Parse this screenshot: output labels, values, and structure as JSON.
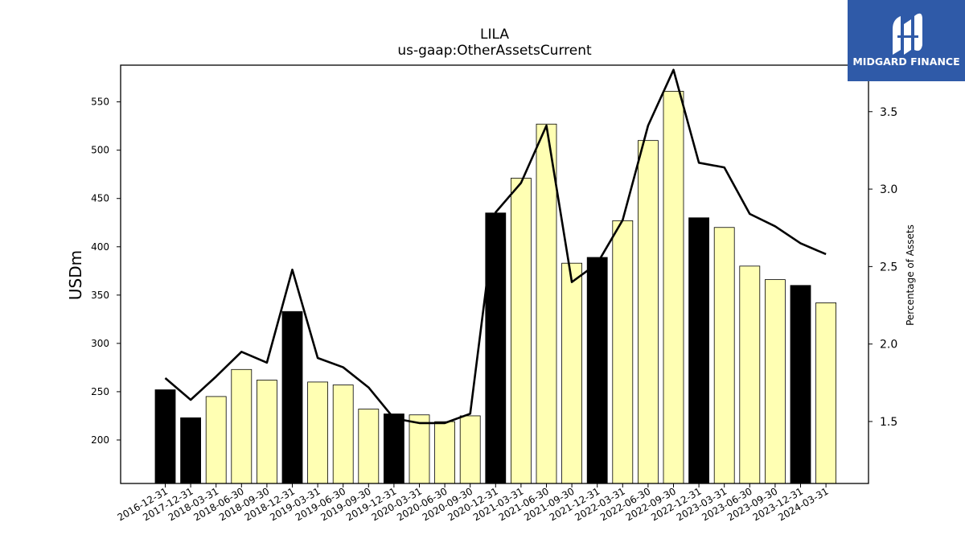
{
  "chart_data": {
    "type": "bar",
    "title": "LILA",
    "subtitle": "us-gaap:OtherAssetsCurrent",
    "ylabel": "USDm",
    "ylabel_right": "Percentage of Assets",
    "ylim": [
      155,
      588
    ],
    "ylim_right": [
      1.1,
      3.8
    ],
    "yticks": [
      200,
      250,
      300,
      350,
      400,
      450,
      500,
      550
    ],
    "yticks_right": [
      1.5,
      2.0,
      2.5,
      3.0,
      3.5
    ],
    "grid": false,
    "categories": [
      "2016-12-31",
      "2017-12-31",
      "2018-03-31",
      "2018-06-30",
      "2018-09-30",
      "2018-12-31",
      "2019-03-31",
      "2019-06-30",
      "2019-09-30",
      "2019-12-31",
      "2020-03-31",
      "2020-06-30",
      "2020-09-30",
      "2020-12-31",
      "2021-03-31",
      "2021-06-30",
      "2021-09-30",
      "2021-12-31",
      "2022-03-31",
      "2022-06-30",
      "2022-09-30",
      "2022-12-31",
      "2023-03-31",
      "2023-06-30",
      "2023-09-30",
      "2023-12-31",
      "2024-03-31"
    ],
    "series": [
      {
        "kind": "bar",
        "axis": "left",
        "values": [
          252,
          223,
          245,
          273,
          262,
          333,
          260,
          257,
          232,
          227,
          226,
          219,
          225,
          435,
          471,
          527,
          383,
          389,
          427,
          510,
          561,
          430,
          420,
          380,
          366,
          360,
          342
        ],
        "fiscal_year_end": [
          true,
          true,
          false,
          false,
          false,
          true,
          false,
          false,
          false,
          true,
          false,
          false,
          false,
          true,
          false,
          false,
          false,
          true,
          false,
          false,
          false,
          true,
          false,
          false,
          false,
          true,
          false
        ]
      },
      {
        "kind": "line",
        "axis": "right",
        "values": [
          1.78,
          1.64,
          1.79,
          1.95,
          1.88,
          2.48,
          1.91,
          1.85,
          1.72,
          1.52,
          1.49,
          1.49,
          1.55,
          2.85,
          3.04,
          3.41,
          2.4,
          2.52,
          2.8,
          3.41,
          3.77,
          3.17,
          3.14,
          2.84,
          2.76,
          2.65,
          2.58
        ]
      }
    ],
    "colors": {
      "fiscal_bar": "#000000",
      "quarter_bar": "#ffffb3",
      "line": "#000000"
    }
  },
  "logo": {
    "text": "MIDGARD FINANCE",
    "icon": "midgard-logo-icon",
    "background": "#2f5aa8"
  }
}
